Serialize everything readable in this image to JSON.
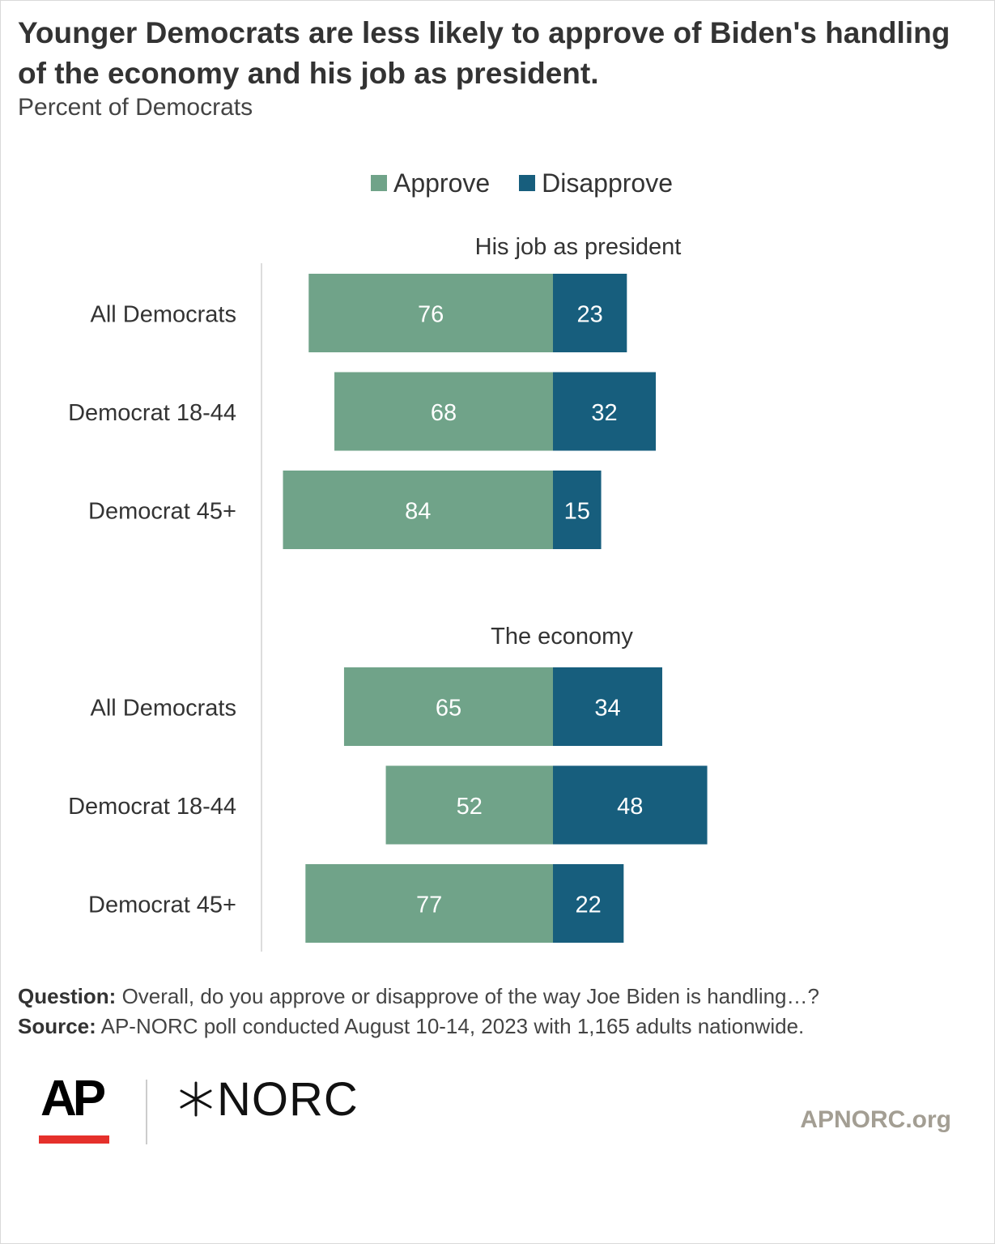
{
  "title": "Younger Democrats are less likely to approve of Biden's handling of the economy and his job as president.",
  "subtitle": "Percent of Democrats",
  "colors": {
    "approve": "#70a389",
    "disapprove": "#175e7d",
    "axis": "#dddddd",
    "label": "#333333"
  },
  "chart_data": {
    "type": "bar",
    "orientation": "horizontal",
    "stacking": "diverging",
    "legend": [
      "Approve",
      "Disapprove"
    ],
    "legend_position": "top",
    "series": [
      {
        "name": "Approve",
        "color": "#70a389"
      },
      {
        "name": "Disapprove",
        "color": "#175e7d"
      }
    ],
    "panels": [
      {
        "title": "His job as president",
        "categories": [
          "All Democrats",
          "Democrat 18-44",
          "Democrat 45+"
        ],
        "approve": [
          76,
          68,
          84
        ],
        "disapprove": [
          23,
          32,
          15
        ]
      },
      {
        "title": "The economy",
        "categories": [
          "All Democrats",
          "Democrat 18-44",
          "Democrat 45+"
        ],
        "approve": [
          65,
          52,
          77
        ],
        "disapprove": [
          34,
          48,
          22
        ]
      }
    ]
  },
  "footer": {
    "question_label": "Question:",
    "question_text": " Overall, do you approve or disapprove of the way Joe Biden is handling…?",
    "source_label": "Source:",
    "source_text": " AP-NORC poll conducted August 10-14, 2023 with 1,165 adults nationwide."
  },
  "logos": {
    "ap": "AP",
    "norc": "NORC",
    "site": "APNORC.org"
  }
}
